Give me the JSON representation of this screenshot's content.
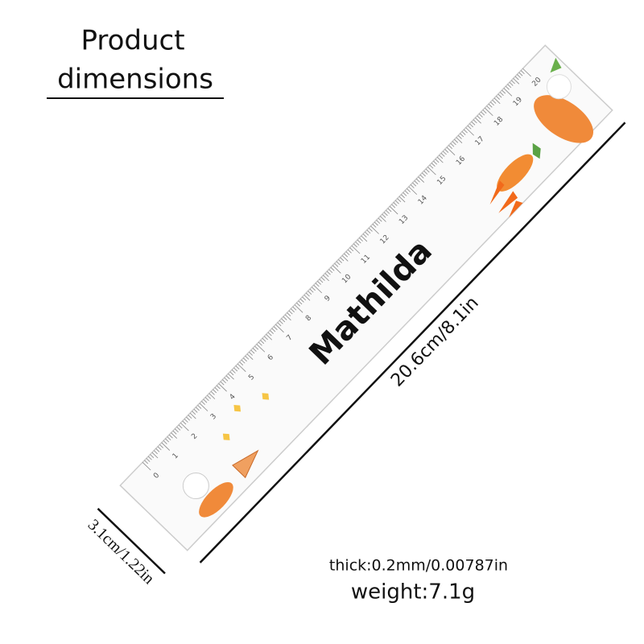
{
  "header": {
    "title_lines": [
      "Product",
      "dimensions"
    ]
  },
  "ruler": {
    "name": "Mathilda",
    "scale_labels": [
      0,
      1,
      2,
      3,
      4,
      5,
      6,
      7,
      8,
      9,
      10,
      11,
      12,
      13,
      14,
      15,
      16,
      17,
      18,
      19,
      20
    ]
  },
  "dimensions": {
    "length": "20.6cm/8.1in",
    "width": "3.1cm/1.22in",
    "thickness": "thick:0.2mm/0.00787in",
    "weight": "weight:7.1g"
  }
}
